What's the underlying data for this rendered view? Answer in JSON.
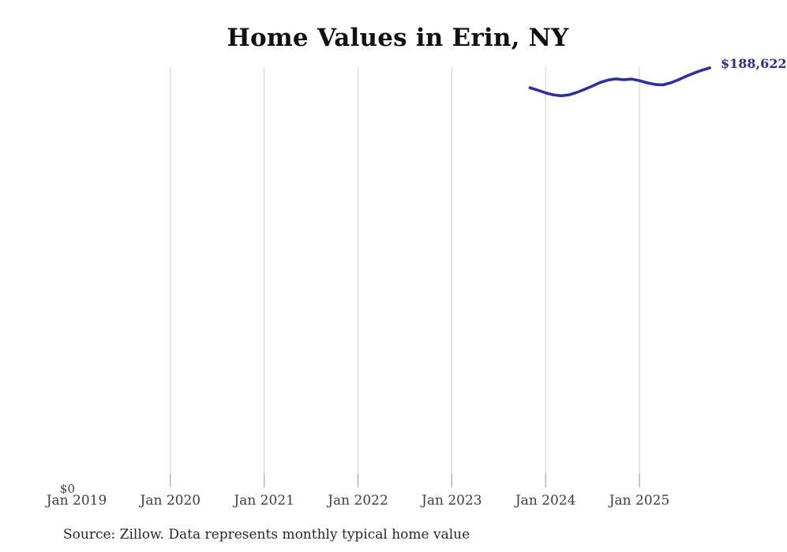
{
  "title": "Home Values in Erin, NY",
  "end_label": "$188,622",
  "y_zero_label": "$0",
  "source_note": "Source: Zillow. Data represents monthly typical home value",
  "colors": {
    "line": "#2f2f9e",
    "end_label": "#2d2d8f",
    "gridline": "#d9d9d9",
    "tick": "#ababab",
    "axis_text": "#3f3f3f",
    "title_text": "#111111",
    "source_text": "#262626",
    "background": "#ffffff"
  },
  "chart_data": {
    "type": "line",
    "title": "Home Values in Erin, NY",
    "xlabel": "",
    "ylabel": "",
    "ylim": [
      0,
      200000
    ],
    "grid": "vertical-only",
    "legend": "none",
    "x_ticks": [
      {
        "label": "Jan 2019",
        "month": "2019-01",
        "gridline": false
      },
      {
        "label": "Jan 2020",
        "month": "2020-01",
        "gridline": true
      },
      {
        "label": "Jan 2021",
        "month": "2021-01",
        "gridline": true
      },
      {
        "label": "Jan 2022",
        "month": "2022-01",
        "gridline": true
      },
      {
        "label": "Jan 2023",
        "month": "2023-01",
        "gridline": true
      },
      {
        "label": "Jan 2024",
        "month": "2024-01",
        "gridline": true
      },
      {
        "label": "Jan 2025",
        "month": "2025-01",
        "gridline": true
      }
    ],
    "series": [
      {
        "name": "Monthly typical home value",
        "points": [
          {
            "date": "2023-11",
            "value": 179700
          },
          {
            "date": "2023-12",
            "value": 178600
          },
          {
            "date": "2024-01",
            "value": 177400
          },
          {
            "date": "2024-02",
            "value": 176500
          },
          {
            "date": "2024-03",
            "value": 176100
          },
          {
            "date": "2024-04",
            "value": 176500
          },
          {
            "date": "2024-05",
            "value": 177600
          },
          {
            "date": "2024-06",
            "value": 179000
          },
          {
            "date": "2024-07",
            "value": 180500
          },
          {
            "date": "2024-08",
            "value": 182100
          },
          {
            "date": "2024-09",
            "value": 183200
          },
          {
            "date": "2024-10",
            "value": 183700
          },
          {
            "date": "2024-11",
            "value": 183300
          },
          {
            "date": "2024-12",
            "value": 183600
          },
          {
            "date": "2025-01",
            "value": 182900
          },
          {
            "date": "2025-02",
            "value": 181900
          },
          {
            "date": "2025-03",
            "value": 181200
          },
          {
            "date": "2025-04",
            "value": 181000
          },
          {
            "date": "2025-05",
            "value": 181900
          },
          {
            "date": "2025-06",
            "value": 183300
          },
          {
            "date": "2025-07",
            "value": 184900
          },
          {
            "date": "2025-08",
            "value": 186300
          },
          {
            "date": "2025-09",
            "value": 187600
          },
          {
            "date": "2025-10",
            "value": 188622
          }
        ]
      }
    ]
  }
}
